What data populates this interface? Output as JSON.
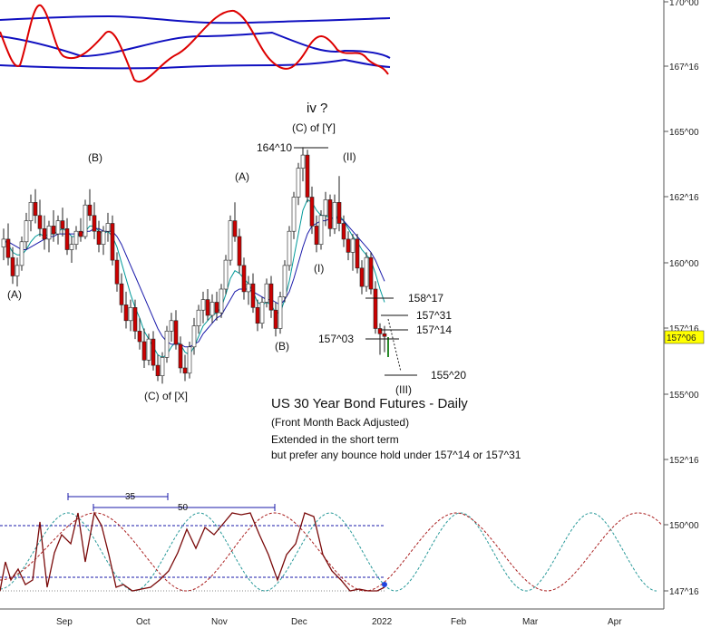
{
  "chart_data": {
    "type": "candlestick",
    "title": "US 30 Year Bond Futures - Daily",
    "subtitle": "(Front Month Back Adjusted)",
    "commentary": [
      "Extended in the short term",
      "but prefer any bounce hold under 157^14 or 157^31"
    ],
    "price_axis": {
      "ticks": [
        "170^00",
        "167^16",
        "165^00",
        "162^16",
        "160^00",
        "157^16",
        "155^00",
        "152^16",
        "150^00",
        "147^16"
      ],
      "current_price": "157^06",
      "current_price_color": "#ffff00"
    },
    "time_axis": {
      "ticks": [
        "Sep",
        "Oct",
        "Nov",
        "Dec",
        "2022",
        "Feb",
        "Mar",
        "Apr"
      ]
    },
    "wave_labels": [
      "(A)",
      "(B)",
      "(C) of [X]",
      "(A)",
      "(B)",
      "(C) of [Y]",
      "iv ?",
      "(I)",
      "(II)",
      "(III)"
    ],
    "price_levels": [
      "164^10",
      "158^17",
      "157^31",
      "157^14",
      "157^03",
      "155^20"
    ],
    "cycle_labels": [
      "35",
      "50"
    ],
    "candles": [
      {
        "o": 160.6,
        "h": 161.3,
        "l": 160.1,
        "c": 160.9
      },
      {
        "o": 160.9,
        "h": 161.5,
        "l": 159.9,
        "c": 160.2
      },
      {
        "o": 160.2,
        "h": 160.6,
        "l": 159.2,
        "c": 159.5
      },
      {
        "o": 159.5,
        "h": 160.2,
        "l": 159.1,
        "c": 159.9
      },
      {
        "o": 159.9,
        "h": 161.0,
        "l": 159.7,
        "c": 160.8
      },
      {
        "o": 160.8,
        "h": 161.9,
        "l": 160.5,
        "c": 161.6
      },
      {
        "o": 161.6,
        "h": 162.6,
        "l": 161.2,
        "c": 162.3
      },
      {
        "o": 162.3,
        "h": 162.8,
        "l": 161.5,
        "c": 161.8
      },
      {
        "o": 161.8,
        "h": 162.4,
        "l": 161.0,
        "c": 161.3
      },
      {
        "o": 161.3,
        "h": 161.8,
        "l": 160.5,
        "c": 160.9
      },
      {
        "o": 160.9,
        "h": 161.6,
        "l": 160.4,
        "c": 161.4
      },
      {
        "o": 161.4,
        "h": 162.0,
        "l": 160.8,
        "c": 161.1
      },
      {
        "o": 161.1,
        "h": 161.8,
        "l": 160.7,
        "c": 161.6
      },
      {
        "o": 161.6,
        "h": 162.1,
        "l": 161.0,
        "c": 161.3
      },
      {
        "o": 161.3,
        "h": 161.7,
        "l": 160.3,
        "c": 160.5
      },
      {
        "o": 160.5,
        "h": 161.0,
        "l": 160.0,
        "c": 160.7
      },
      {
        "o": 160.7,
        "h": 161.4,
        "l": 160.5,
        "c": 161.2
      },
      {
        "o": 161.2,
        "h": 161.7,
        "l": 160.8,
        "c": 161.0
      },
      {
        "o": 161.0,
        "h": 162.4,
        "l": 160.9,
        "c": 162.2
      },
      {
        "o": 162.2,
        "h": 162.8,
        "l": 161.6,
        "c": 161.8
      },
      {
        "o": 161.8,
        "h": 162.3,
        "l": 160.9,
        "c": 161.2
      },
      {
        "o": 161.2,
        "h": 161.6,
        "l": 160.4,
        "c": 160.7
      },
      {
        "o": 160.7,
        "h": 161.4,
        "l": 160.3,
        "c": 161.2
      },
      {
        "o": 161.2,
        "h": 161.9,
        "l": 160.8,
        "c": 161.5
      },
      {
        "o": 161.5,
        "h": 161.8,
        "l": 159.9,
        "c": 160.1
      },
      {
        "o": 160.1,
        "h": 160.4,
        "l": 158.9,
        "c": 159.2
      },
      {
        "o": 159.2,
        "h": 159.6,
        "l": 158.1,
        "c": 158.4
      },
      {
        "o": 158.4,
        "h": 158.9,
        "l": 157.5,
        "c": 157.8
      },
      {
        "o": 157.8,
        "h": 158.6,
        "l": 157.4,
        "c": 158.3
      },
      {
        "o": 158.3,
        "h": 158.6,
        "l": 157.1,
        "c": 157.4
      },
      {
        "o": 157.4,
        "h": 157.9,
        "l": 156.7,
        "c": 157.0
      },
      {
        "o": 157.0,
        "h": 157.5,
        "l": 156.0,
        "c": 156.3
      },
      {
        "o": 156.3,
        "h": 157.3,
        "l": 156.1,
        "c": 157.1
      },
      {
        "o": 157.1,
        "h": 157.4,
        "l": 155.9,
        "c": 156.1
      },
      {
        "o": 156.1,
        "h": 156.5,
        "l": 155.5,
        "c": 155.7
      },
      {
        "o": 155.7,
        "h": 156.6,
        "l": 155.4,
        "c": 156.4
      },
      {
        "o": 156.4,
        "h": 157.6,
        "l": 156.2,
        "c": 157.4
      },
      {
        "o": 157.4,
        "h": 158.1,
        "l": 157.0,
        "c": 157.8
      },
      {
        "o": 157.8,
        "h": 158.2,
        "l": 156.7,
        "c": 156.9
      },
      {
        "o": 156.9,
        "h": 157.2,
        "l": 155.8,
        "c": 156.0
      },
      {
        "o": 156.0,
        "h": 156.5,
        "l": 155.5,
        "c": 155.8
      },
      {
        "o": 155.8,
        "h": 157.0,
        "l": 155.6,
        "c": 156.8
      },
      {
        "o": 156.8,
        "h": 157.9,
        "l": 156.5,
        "c": 157.6
      },
      {
        "o": 157.6,
        "h": 158.4,
        "l": 157.3,
        "c": 158.2
      },
      {
        "o": 158.2,
        "h": 158.9,
        "l": 157.7,
        "c": 158.6
      },
      {
        "o": 158.6,
        "h": 159.0,
        "l": 157.8,
        "c": 158.0
      },
      {
        "o": 158.0,
        "h": 158.8,
        "l": 157.7,
        "c": 158.5
      },
      {
        "o": 158.5,
        "h": 158.9,
        "l": 157.8,
        "c": 158.1
      },
      {
        "o": 158.1,
        "h": 159.2,
        "l": 157.9,
        "c": 159.0
      },
      {
        "o": 159.0,
        "h": 160.3,
        "l": 158.8,
        "c": 160.1
      },
      {
        "o": 160.1,
        "h": 161.8,
        "l": 159.9,
        "c": 161.6
      },
      {
        "o": 161.6,
        "h": 162.3,
        "l": 160.8,
        "c": 161.0
      },
      {
        "o": 161.0,
        "h": 161.3,
        "l": 159.6,
        "c": 159.9
      },
      {
        "o": 159.9,
        "h": 160.2,
        "l": 158.6,
        "c": 158.9
      },
      {
        "o": 158.9,
        "h": 159.5,
        "l": 158.4,
        "c": 159.2
      },
      {
        "o": 159.2,
        "h": 159.6,
        "l": 158.1,
        "c": 158.3
      },
      {
        "o": 158.3,
        "h": 158.6,
        "l": 157.4,
        "c": 157.7
      },
      {
        "o": 157.7,
        "h": 158.7,
        "l": 157.5,
        "c": 158.5
      },
      {
        "o": 158.5,
        "h": 159.4,
        "l": 158.3,
        "c": 159.2
      },
      {
        "o": 159.2,
        "h": 159.5,
        "l": 157.9,
        "c": 158.2
      },
      {
        "o": 158.2,
        "h": 158.5,
        "l": 157.2,
        "c": 157.5
      },
      {
        "o": 157.5,
        "h": 158.9,
        "l": 157.3,
        "c": 158.7
      },
      {
        "o": 158.7,
        "h": 160.1,
        "l": 158.5,
        "c": 159.9
      },
      {
        "o": 159.9,
        "h": 161.4,
        "l": 159.7,
        "c": 161.2
      },
      {
        "o": 161.2,
        "h": 162.7,
        "l": 160.9,
        "c": 162.5
      },
      {
        "o": 162.5,
        "h": 163.8,
        "l": 162.2,
        "c": 163.6
      },
      {
        "o": 163.6,
        "h": 164.4,
        "l": 163.1,
        "c": 164.1
      },
      {
        "o": 164.1,
        "h": 164.3,
        "l": 162.3,
        "c": 162.5
      },
      {
        "o": 162.5,
        "h": 162.9,
        "l": 161.1,
        "c": 161.4
      },
      {
        "o": 161.4,
        "h": 161.8,
        "l": 160.4,
        "c": 160.7
      },
      {
        "o": 160.7,
        "h": 162.0,
        "l": 160.5,
        "c": 161.8
      },
      {
        "o": 161.8,
        "h": 162.7,
        "l": 161.4,
        "c": 162.4
      },
      {
        "o": 162.4,
        "h": 162.6,
        "l": 161.0,
        "c": 161.3
      },
      {
        "o": 161.3,
        "h": 162.6,
        "l": 161.1,
        "c": 162.3
      },
      {
        "o": 162.3,
        "h": 163.3,
        "l": 161.2,
        "c": 161.5
      },
      {
        "o": 161.5,
        "h": 161.8,
        "l": 160.6,
        "c": 160.9
      },
      {
        "o": 160.9,
        "h": 161.2,
        "l": 160.1,
        "c": 160.4
      },
      {
        "o": 160.4,
        "h": 161.1,
        "l": 159.7,
        "c": 160.9
      },
      {
        "o": 160.9,
        "h": 161.1,
        "l": 159.6,
        "c": 159.8
      },
      {
        "o": 159.8,
        "h": 160.1,
        "l": 158.8,
        "c": 159.1
      },
      {
        "o": 159.1,
        "h": 160.4,
        "l": 158.9,
        "c": 160.2
      },
      {
        "o": 160.2,
        "h": 160.4,
        "l": 158.8,
        "c": 159.0
      },
      {
        "o": 159.0,
        "h": 159.3,
        "l": 157.3,
        "c": 157.5
      },
      {
        "o": 157.5,
        "h": 157.7,
        "l": 156.5,
        "c": 157.3
      },
      {
        "o": 157.3,
        "h": 157.6,
        "l": 156.6,
        "c": 157.2
      }
    ],
    "ma_fast": [
      160.9,
      160.7,
      160.4,
      160.3,
      160.3,
      160.5,
      160.8,
      161.0,
      161.1,
      161.0,
      161.1,
      161.1,
      161.2,
      161.3,
      161.2,
      161.0,
      161.0,
      161.1,
      161.2,
      161.4,
      161.4,
      161.2,
      161.1,
      161.2,
      161.0,
      160.6,
      160.0,
      159.4,
      158.8,
      158.3,
      157.9,
      157.4,
      157.1,
      156.8,
      156.5,
      156.4,
      156.5,
      156.8,
      157.0,
      156.9,
      156.6,
      156.5,
      156.8,
      157.2,
      157.6,
      157.8,
      158.0,
      158.1,
      158.3,
      158.8,
      159.4,
      159.7,
      159.6,
      159.4,
      159.2,
      158.9,
      158.5,
      158.4,
      158.5,
      158.4,
      158.1,
      158.1,
      158.6,
      159.3,
      160.2,
      161.1,
      162.0,
      162.4,
      162.3,
      162.0,
      161.8,
      161.8,
      161.7,
      161.7,
      161.8,
      161.6,
      161.3,
      161.0,
      160.8,
      160.5,
      160.3,
      160.1,
      159.6,
      159.0,
      158.5
    ],
    "ma_slow": [
      160.8,
      160.8,
      160.7,
      160.6,
      160.5,
      160.5,
      160.6,
      160.7,
      160.8,
      160.9,
      161.0,
      161.0,
      161.1,
      161.1,
      161.1,
      161.1,
      161.1,
      161.1,
      161.2,
      161.2,
      161.3,
      161.3,
      161.2,
      161.2,
      161.2,
      161.0,
      160.7,
      160.3,
      159.9,
      159.5,
      159.1,
      158.7,
      158.3,
      157.9,
      157.5,
      157.2,
      157.0,
      156.9,
      156.9,
      156.9,
      156.8,
      156.8,
      156.9,
      157.0,
      157.3,
      157.5,
      157.7,
      157.9,
      158.0,
      158.3,
      158.6,
      158.9,
      159.0,
      159.0,
      159.0,
      158.9,
      158.8,
      158.7,
      158.6,
      158.6,
      158.5,
      158.4,
      158.6,
      158.9,
      159.4,
      160.0,
      160.6,
      161.1,
      161.4,
      161.5,
      161.6,
      161.6,
      161.7,
      161.7,
      161.7,
      161.6,
      161.4,
      161.2,
      161.0,
      160.8,
      160.6,
      160.4,
      160.1,
      159.7,
      159.3
    ]
  }
}
